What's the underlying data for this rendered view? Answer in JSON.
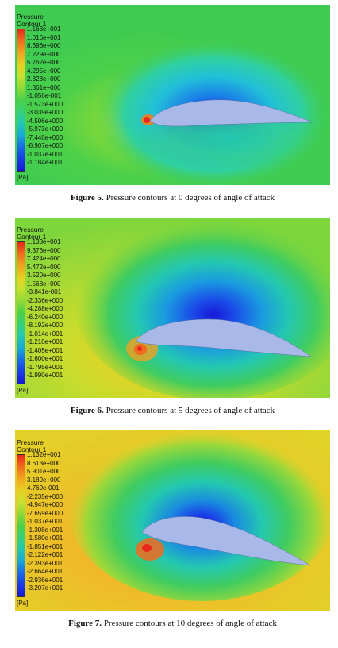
{
  "figures": [
    {
      "legend_title": "Pressure",
      "legend_subtitle": "Contour 1",
      "unit": "[Pa]",
      "levels": [
        "1.163e+001",
        "1.016e+001",
        "8.696e+000",
        "7.229e+000",
        "5.762e+000",
        "4.295e+000",
        "2.828e+000",
        "1.361e+000",
        "-1.056e-001",
        "-1.573e+000",
        "-3.039e+000",
        "-4.506e+000",
        "-5.973e+000",
        "-7.440e+000",
        "-8.907e+000",
        "-1.037e+001",
        "-1.184e+001"
      ],
      "caption_label": "Figure 5.",
      "caption_text": "Pressure contours at 0 degrees of angle of attack",
      "angle_of_attack": 0
    },
    {
      "legend_title": "Pressure",
      "legend_subtitle": "Contour 1",
      "unit": "[Pa]",
      "levels": [
        "1.133e+001",
        "9.376e+000",
        "7.424e+000",
        "5.472e+000",
        "3.520e+000",
        "1.568e+000",
        "-3.841e-001",
        "-2.336e+000",
        "-4.288e+000",
        "-6.240e+000",
        "-8.192e+000",
        "-1.014e+001",
        "-1.210e+001",
        "-1.405e+001",
        "-1.600e+001",
        "-1.795e+001",
        "-1.990e+001"
      ],
      "caption_label": "Figure 6.",
      "caption_text": "Pressure contours at 5 degrees of angle of attack",
      "angle_of_attack": 5
    },
    {
      "legend_title": "Pressure",
      "legend_subtitle": "Contour 1",
      "unit": "[Pa]",
      "levels": [
        "1.132e+001",
        "8.613e+000",
        "5.901e+000",
        "3.189e+000",
        "4.769e-001",
        "-2.235e+000",
        "-4.947e+000",
        "-7.659e+000",
        "-1.037e+001",
        "-1.308e+001",
        "-1.580e+001",
        "-1.851e+001",
        "-2.122e+001",
        "-2.393e+001",
        "-2.664e+001",
        "-2.936e+001",
        "-3.207e+001"
      ],
      "caption_label": "Figure 7.",
      "caption_text": "Pressure contours at 10 degrees of angle of attack",
      "angle_of_attack": 10
    }
  ],
  "colors": {
    "airfoil": "#a8b8e8",
    "stagnation": "#e8281c"
  }
}
